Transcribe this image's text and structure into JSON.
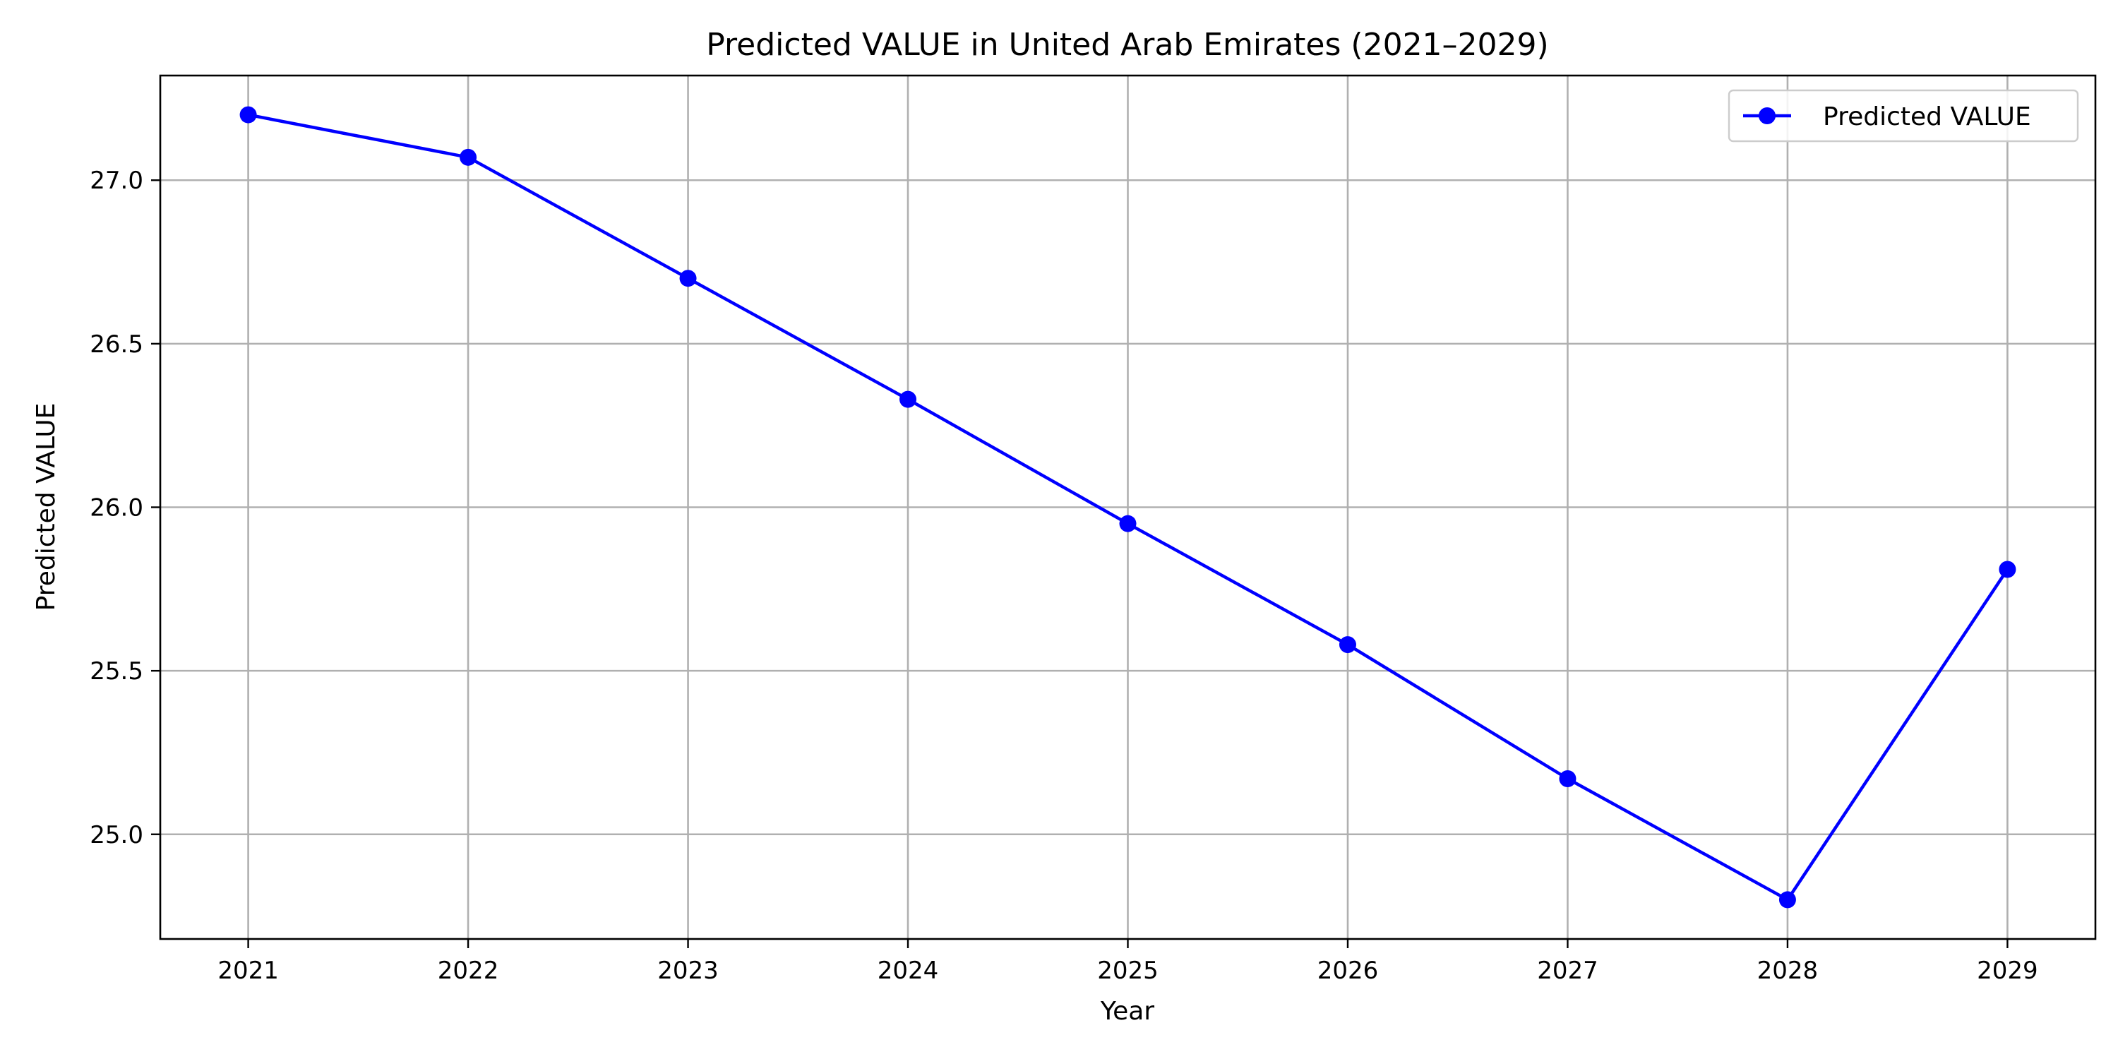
{
  "chart_data": {
    "type": "line",
    "title": "Predicted VALUE in United Arab Emirates (2021–2029)",
    "xlabel": "Year",
    "ylabel": "Predicted VALUE",
    "x": [
      2021,
      2022,
      2023,
      2024,
      2025,
      2026,
      2027,
      2028,
      2029
    ],
    "x_tick_labels": [
      "2021",
      "2022",
      "2023",
      "2024",
      "2025",
      "2026",
      "2027",
      "2028",
      "2029"
    ],
    "y_ticks": [
      25.0,
      25.5,
      26.0,
      26.5,
      27.0
    ],
    "y_tick_labels": [
      "25.0",
      "25.5",
      "26.0",
      "26.5",
      "27.0"
    ],
    "xlim": [
      2020.6,
      2029.4
    ],
    "ylim": [
      24.68,
      27.32
    ],
    "grid": true,
    "legend_position": "top-right",
    "series": [
      {
        "name": "Predicted VALUE",
        "color": "#0000ff",
        "marker": "circle",
        "values": [
          27.2,
          27.07,
          26.7,
          26.33,
          25.95,
          25.58,
          25.17,
          24.8,
          25.81
        ]
      }
    ]
  }
}
